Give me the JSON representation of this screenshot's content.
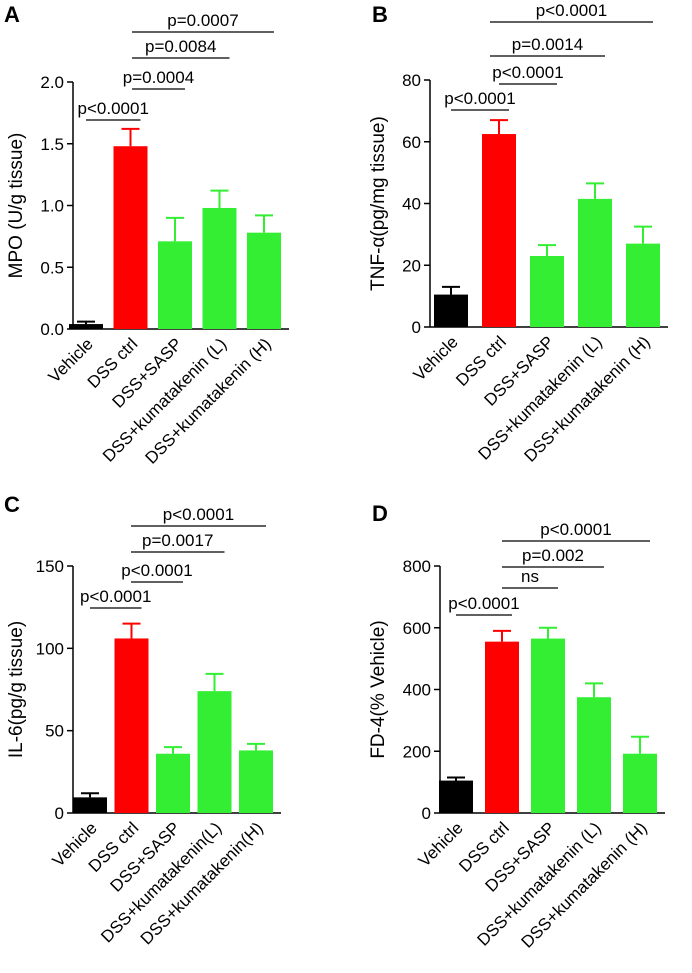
{
  "colors": {
    "vehicle": "#000000",
    "dss_ctrl": "#ff0000",
    "treatment": "#33ee33",
    "axis": "#000000"
  },
  "chart_data": [
    {
      "type": "bar",
      "panel": "A",
      "ylabel": "MPO (U/g tissue)",
      "ylim": [
        0,
        2.0
      ],
      "yticks": [
        "0.0",
        "0.5",
        "1.0",
        "1.5",
        "2.0"
      ],
      "ytick_values": [
        0,
        0.5,
        1.0,
        1.5,
        2.0
      ],
      "categories": [
        "Vehicle",
        "DSS ctrl",
        "DSS+SASP",
        "DSS+kumatakenin (L)",
        "DSS+kumatakenin (H)"
      ],
      "values": [
        0.04,
        1.48,
        0.71,
        0.98,
        0.78
      ],
      "errors": [
        0.02,
        0.14,
        0.19,
        0.14,
        0.14
      ],
      "comparisons": [
        {
          "from": 0,
          "to": 1,
          "label": "p<0.0001"
        },
        {
          "from": 1,
          "to": 2,
          "label": "p=0.0004"
        },
        {
          "from": 1,
          "to": 3,
          "label": "p=0.0084"
        },
        {
          "from": 1,
          "to": 4,
          "label": "p=0.0007"
        }
      ]
    },
    {
      "type": "bar",
      "panel": "B",
      "ylabel": "TNF-α(pg/mg tissue)",
      "ylim": [
        0,
        80
      ],
      "yticks": [
        "0",
        "20",
        "40",
        "60",
        "80"
      ],
      "ytick_values": [
        0,
        20,
        40,
        60,
        80
      ],
      "categories": [
        "Vehicle",
        "DSS ctrl",
        "DSS+SASP",
        "DSS+kumatakenin (L)",
        "DSS+kumatakenin (H)"
      ],
      "values": [
        10.5,
        62.5,
        23,
        41.5,
        27
      ],
      "errors": [
        2.5,
        4.5,
        3.5,
        5,
        5.5
      ],
      "comparisons": [
        {
          "from": 0,
          "to": 1,
          "label": "p<0.0001"
        },
        {
          "from": 1,
          "to": 2,
          "label": "p<0.0001"
        },
        {
          "from": 1,
          "to": 3,
          "label": "p=0.0014"
        },
        {
          "from": 1,
          "to": 4,
          "label": "p<0.0001"
        }
      ]
    },
    {
      "type": "bar",
      "panel": "C",
      "ylabel": "IL-6(pg/g tissue)",
      "ylim": [
        0,
        150
      ],
      "yticks": [
        "0",
        "50",
        "100",
        "150"
      ],
      "ytick_values": [
        0,
        50,
        100,
        150
      ],
      "categories": [
        "Vehicle",
        "DSS ctrl",
        "DSS+SASP",
        "DSS+kumatakenin(L)",
        "DSS+kumatakenin(H)"
      ],
      "values": [
        9.5,
        106,
        36,
        74,
        38
      ],
      "errors": [
        2.5,
        9,
        4,
        10.5,
        4
      ],
      "comparisons": [
        {
          "from": 0,
          "to": 1,
          "label": "p<0.0001"
        },
        {
          "from": 1,
          "to": 2,
          "label": "p<0.0001"
        },
        {
          "from": 1,
          "to": 3,
          "label": "p=0.0017"
        },
        {
          "from": 1,
          "to": 4,
          "label": "p<0.0001"
        }
      ]
    },
    {
      "type": "bar",
      "panel": "D",
      "ylabel": "FD-4(% Vehicle)",
      "ylim": [
        0,
        800
      ],
      "yticks": [
        "0",
        "200",
        "400",
        "600",
        "800"
      ],
      "ytick_values": [
        0,
        200,
        400,
        600,
        800
      ],
      "categories": [
        "Vehicle",
        "DSS ctrl",
        "DSS+SASP",
        "DSS+kumatakenin (L)",
        "DSS+kumatakenin (H)"
      ],
      "values": [
        105,
        555,
        565,
        375,
        192
      ],
      "errors": [
        10,
        35,
        35,
        45,
        55
      ],
      "comparisons": [
        {
          "from": 0,
          "to": 1,
          "label": "p<0.0001"
        },
        {
          "from": 1,
          "to": 2,
          "label": "ns"
        },
        {
          "from": 1,
          "to": 3,
          "label": "p=0.002"
        },
        {
          "from": 1,
          "to": 4,
          "label": "p<0.0001"
        }
      ]
    }
  ]
}
